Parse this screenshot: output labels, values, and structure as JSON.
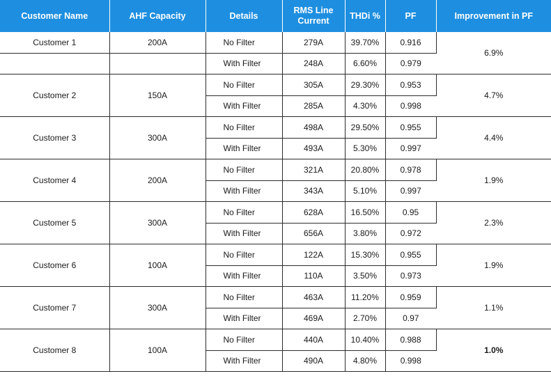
{
  "headers": {
    "customer_name": "Customer Name",
    "ahf_capacity": "AHF Capacity",
    "details": "Details",
    "rms_line_current": "RMS Line Current",
    "thdi": "THDi %",
    "pf": "PF",
    "improvement_pf": "Improvement in PF"
  },
  "rows": [
    {
      "customer": "Customer 1",
      "capacity": "200A",
      "improvement": "6.9%",
      "no_filter": {
        "label": "No  Filter",
        "rms": "279A",
        "thdi": "39.70%",
        "pf": "0.916"
      },
      "with_filter": {
        "label": "With Filter",
        "rms": "248A",
        "thdi": "6.60%",
        "pf": "0.979"
      }
    },
    {
      "customer": "Customer 2",
      "capacity": "150A",
      "improvement": "4.7%",
      "no_filter": {
        "label": "No  Filter",
        "rms": "305A",
        "thdi": "29.30%",
        "pf": "0.953"
      },
      "with_filter": {
        "label": "With Filter",
        "rms": "285A",
        "thdi": "4.30%",
        "pf": "0.998"
      }
    },
    {
      "customer": "Customer 3",
      "capacity": "300A",
      "improvement": "4.4%",
      "no_filter": {
        "label": "No  Filter",
        "rms": "498A",
        "thdi": "29.50%",
        "pf": "0.955"
      },
      "with_filter": {
        "label": "With Filter",
        "rms": "493A",
        "thdi": "5.30%",
        "pf": "0.997"
      }
    },
    {
      "customer": "Customer 4",
      "capacity": "200A",
      "improvement": "1.9%",
      "no_filter": {
        "label": "No  Filter",
        "rms": "321A",
        "thdi": "20.80%",
        "pf": "0.978"
      },
      "with_filter": {
        "label": "With Filter",
        "rms": "343A",
        "thdi": "5.10%",
        "pf": "0.997"
      }
    },
    {
      "customer": "Customer 5",
      "capacity": "300A",
      "improvement": "2.3%",
      "no_filter": {
        "label": "No  Filter",
        "rms": "628A",
        "thdi": "16.50%",
        "pf": "0.95"
      },
      "with_filter": {
        "label": "With Filter",
        "rms": "656A",
        "thdi": "3.80%",
        "pf": "0.972"
      }
    },
    {
      "customer": "Customer 6",
      "capacity": "100A",
      "improvement": "1.9%",
      "no_filter": {
        "label": "No  Filter",
        "rms": "122A",
        "thdi": "15.30%",
        "pf": "0.955"
      },
      "with_filter": {
        "label": "With Filter",
        "rms": "110A",
        "thdi": "3.50%",
        "pf": "0.973"
      }
    },
    {
      "customer": "Customer 7",
      "capacity": "300A",
      "improvement": "1.1%",
      "no_filter": {
        "label": "No  Filter",
        "rms": "463A",
        "thdi": "11.20%",
        "pf": "0.959"
      },
      "with_filter": {
        "label": "With Filter",
        "rms": "469A",
        "thdi": "2.70%",
        "pf": "0.97"
      }
    },
    {
      "customer": "Customer 8",
      "capacity": "100A",
      "improvement": "1.0%",
      "no_filter": {
        "label": "No  Filter",
        "rms": "440A",
        "thdi": "10.40%",
        "pf": "0.988"
      },
      "with_filter": {
        "label": "With Filter",
        "rms": "490A",
        "thdi": "4.80%",
        "pf": "0.998"
      }
    }
  ]
}
